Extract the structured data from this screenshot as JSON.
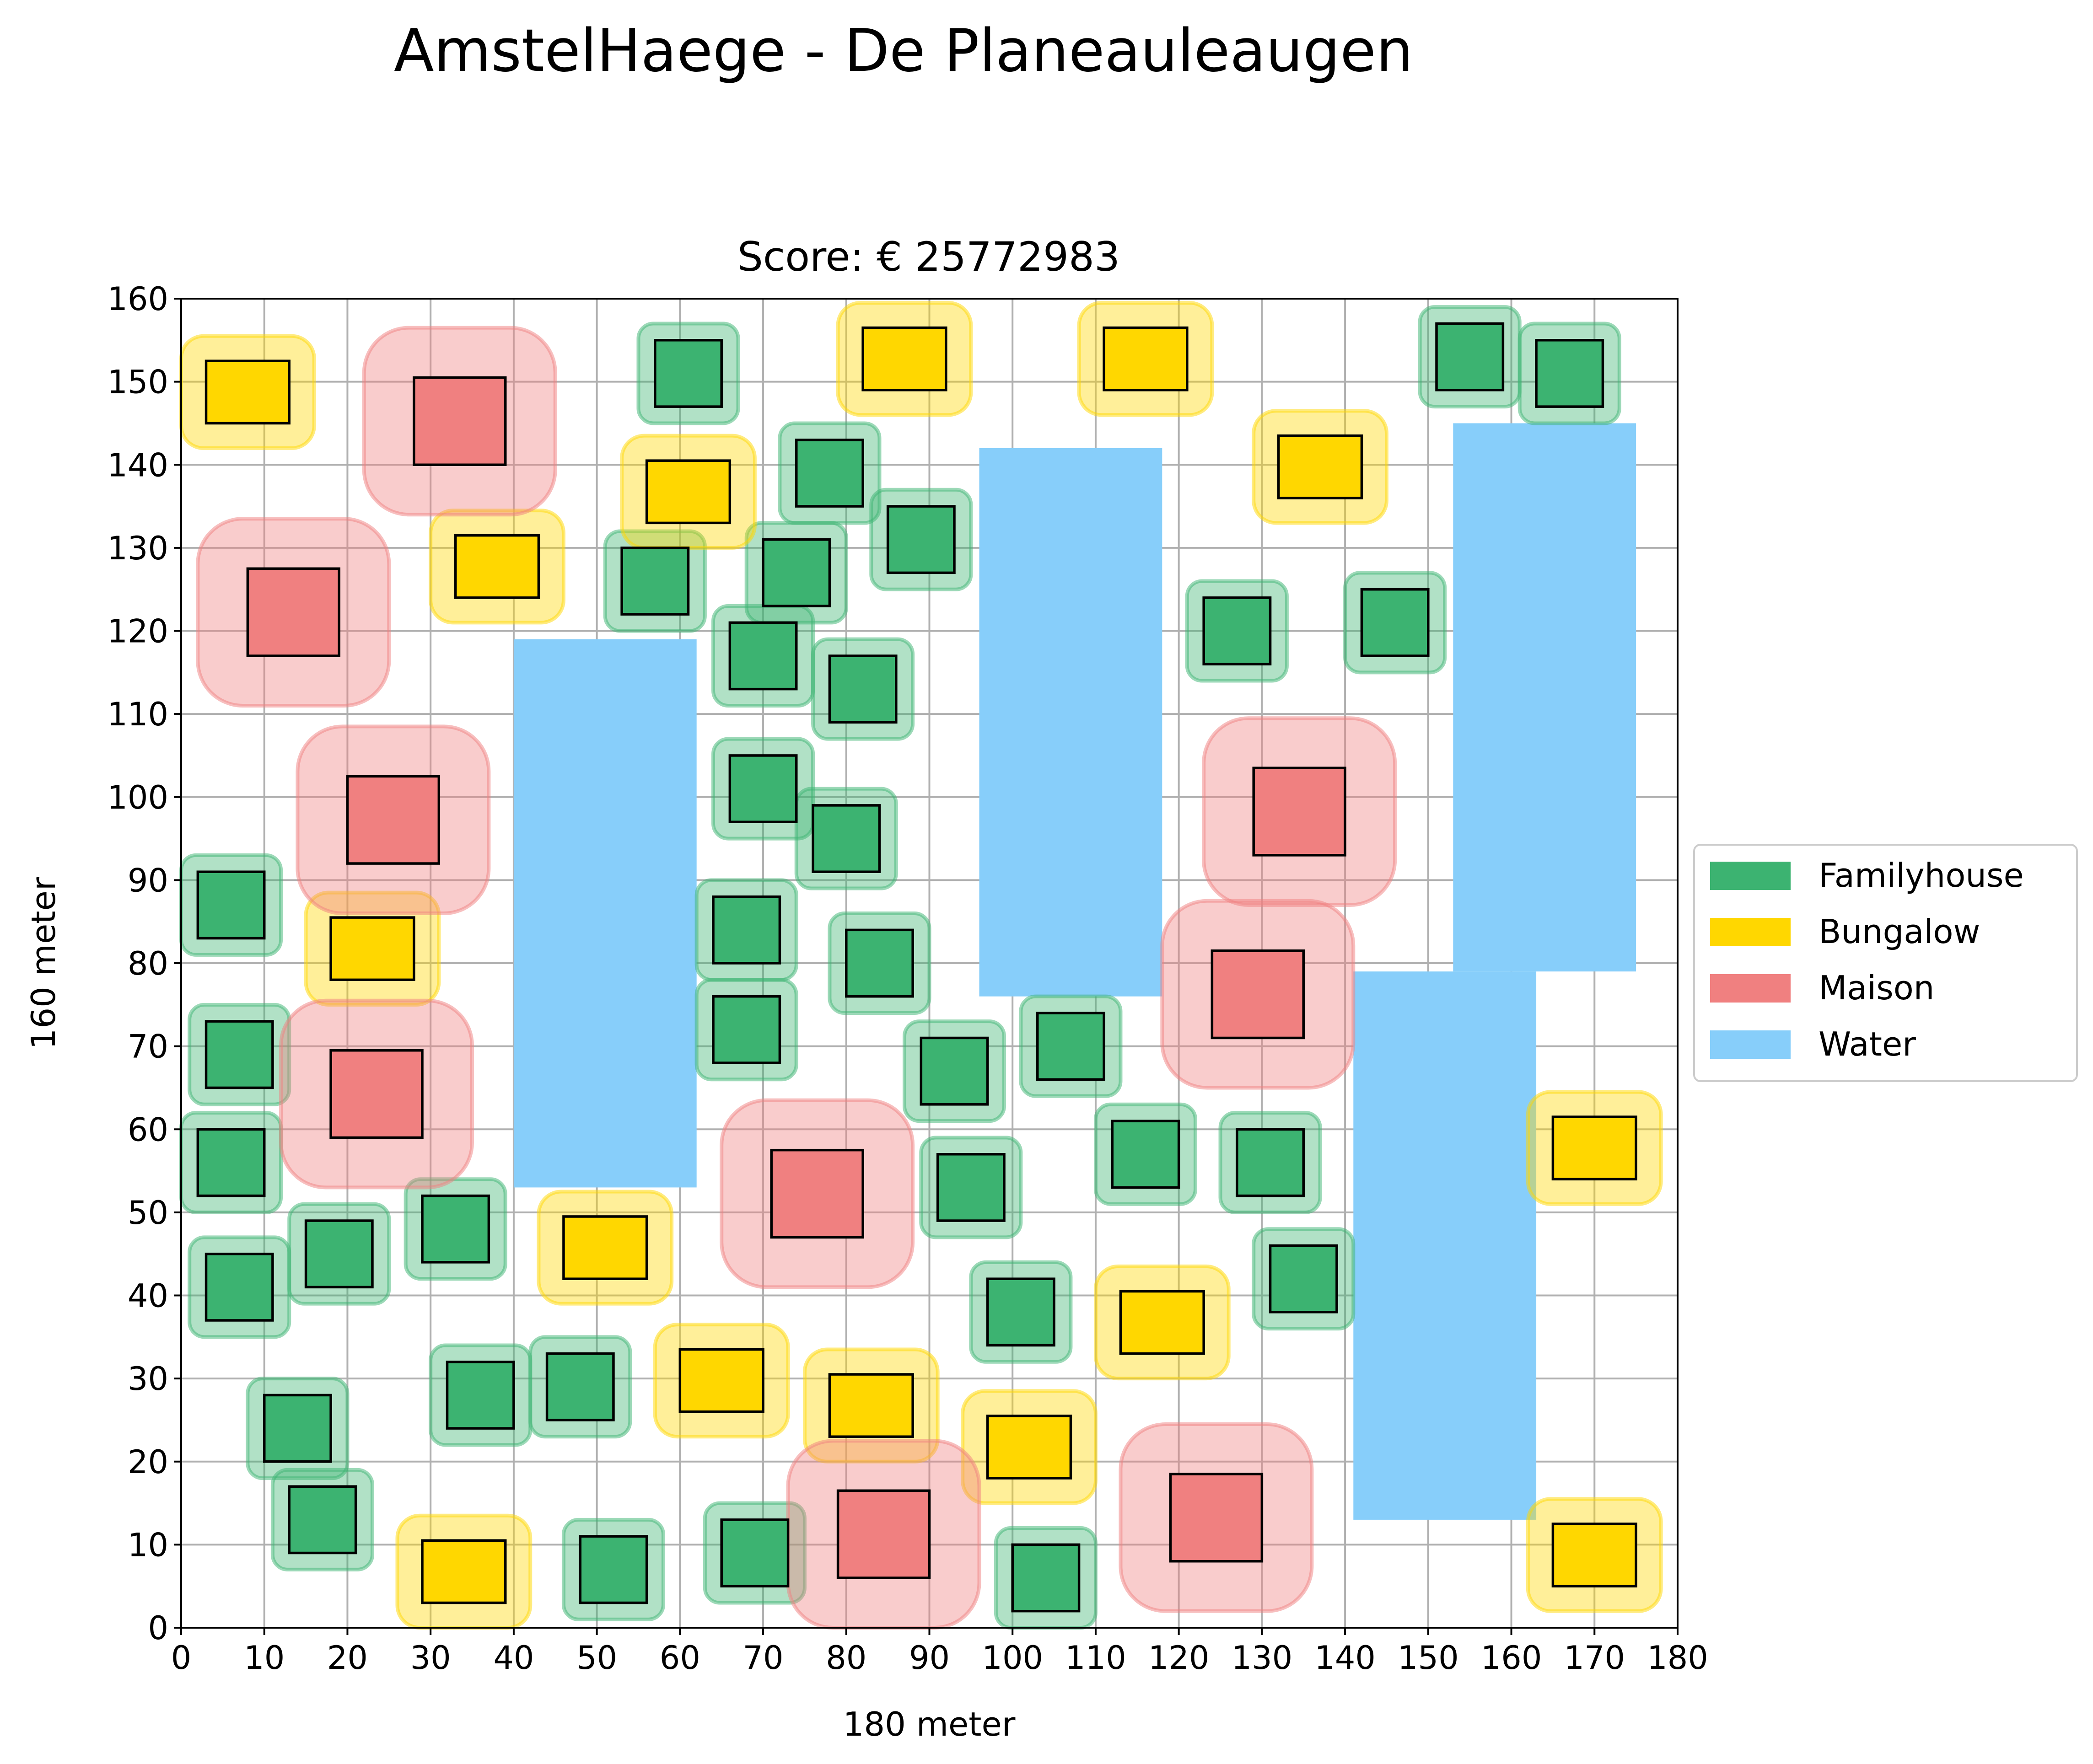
{
  "chart_data": {
    "type": "scatter",
    "title": "AmstelHaege - De Planeauleaugen",
    "subtitle": "Score: € 25772983",
    "xlabel": "180 meter",
    "ylabel": "160 meter",
    "xlim": [
      0,
      180
    ],
    "ylim": [
      0,
      160
    ],
    "xticks": [
      0,
      10,
      20,
      30,
      40,
      50,
      60,
      70,
      80,
      90,
      100,
      110,
      120,
      130,
      140,
      150,
      160,
      170,
      180
    ],
    "yticks": [
      0,
      10,
      20,
      30,
      40,
      50,
      60,
      70,
      80,
      90,
      100,
      110,
      120,
      130,
      140,
      150,
      160
    ],
    "grid": true,
    "legend_position": "right",
    "legend": [
      {
        "name": "Familyhouse",
        "color": "#3cb371"
      },
      {
        "name": "Bungalow",
        "color": "#ffd700"
      },
      {
        "name": "Maison",
        "color": "#f08080"
      },
      {
        "name": "Water",
        "color": "#87cefa"
      }
    ],
    "clearance_zones": {
      "Familyhouse": 2,
      "Bungalow": 3,
      "Maison": 6
    },
    "water": [
      {
        "x0": 40,
        "y0": 53,
        "x1": 62,
        "y1": 119
      },
      {
        "x0": 96,
        "y0": 76,
        "x1": 118,
        "y1": 142
      },
      {
        "x0": 153,
        "y0": 79,
        "x1": 175,
        "y1": 145
      },
      {
        "x0": 141,
        "y0": 13,
        "x1": 163,
        "y1": 79
      }
    ],
    "houses": [
      {
        "type": "Familyhouse",
        "x0": 2,
        "y0": 83,
        "x1": 10,
        "y1": 91
      },
      {
        "type": "Familyhouse",
        "x0": 3,
        "y0": 65,
        "x1": 11,
        "y1": 73
      },
      {
        "type": "Familyhouse",
        "x0": 2,
        "y0": 52,
        "x1": 10,
        "y1": 60
      },
      {
        "type": "Familyhouse",
        "x0": 3,
        "y0": 37,
        "x1": 11,
        "y1": 45
      },
      {
        "type": "Familyhouse",
        "x0": 15,
        "y0": 41,
        "x1": 23,
        "y1": 49
      },
      {
        "type": "Familyhouse",
        "x0": 29,
        "y0": 44,
        "x1": 37,
        "y1": 52
      },
      {
        "type": "Familyhouse",
        "x0": 10,
        "y0": 20,
        "x1": 18,
        "y1": 28
      },
      {
        "type": "Familyhouse",
        "x0": 13,
        "y0": 9,
        "x1": 21,
        "y1": 17
      },
      {
        "type": "Familyhouse",
        "x0": 32,
        "y0": 24,
        "x1": 40,
        "y1": 32
      },
      {
        "type": "Familyhouse",
        "x0": 44,
        "y0": 25,
        "x1": 52,
        "y1": 33
      },
      {
        "type": "Familyhouse",
        "x0": 48,
        "y0": 3,
        "x1": 56,
        "y1": 11
      },
      {
        "type": "Familyhouse",
        "x0": 65,
        "y0": 5,
        "x1": 73,
        "y1": 13
      },
      {
        "type": "Familyhouse",
        "x0": 57,
        "y0": 147,
        "x1": 65,
        "y1": 155
      },
      {
        "type": "Familyhouse",
        "x0": 53,
        "y0": 122,
        "x1": 61,
        "y1": 130
      },
      {
        "type": "Familyhouse",
        "x0": 74,
        "y0": 135,
        "x1": 82,
        "y1": 143
      },
      {
        "type": "Familyhouse",
        "x0": 70,
        "y0": 123,
        "x1": 78,
        "y1": 131
      },
      {
        "type": "Familyhouse",
        "x0": 85,
        "y0": 127,
        "x1": 93,
        "y1": 135
      },
      {
        "type": "Familyhouse",
        "x0": 66,
        "y0": 113,
        "x1": 74,
        "y1": 121
      },
      {
        "type": "Familyhouse",
        "x0": 78,
        "y0": 109,
        "x1": 86,
        "y1": 117
      },
      {
        "type": "Familyhouse",
        "x0": 66,
        "y0": 97,
        "x1": 74,
        "y1": 105
      },
      {
        "type": "Familyhouse",
        "x0": 76,
        "y0": 91,
        "x1": 84,
        "y1": 99
      },
      {
        "type": "Familyhouse",
        "x0": 64,
        "y0": 80,
        "x1": 72,
        "y1": 88
      },
      {
        "type": "Familyhouse",
        "x0": 80,
        "y0": 76,
        "x1": 88,
        "y1": 84
      },
      {
        "type": "Familyhouse",
        "x0": 64,
        "y0": 68,
        "x1": 72,
        "y1": 76
      },
      {
        "type": "Familyhouse",
        "x0": 89,
        "y0": 63,
        "x1": 97,
        "y1": 71
      },
      {
        "type": "Familyhouse",
        "x0": 91,
        "y0": 49,
        "x1": 99,
        "y1": 57
      },
      {
        "type": "Familyhouse",
        "x0": 103,
        "y0": 66,
        "x1": 111,
        "y1": 74
      },
      {
        "type": "Familyhouse",
        "x0": 97,
        "y0": 34,
        "x1": 105,
        "y1": 42
      },
      {
        "type": "Familyhouse",
        "x0": 100,
        "y0": 2,
        "x1": 108,
        "y1": 10
      },
      {
        "type": "Familyhouse",
        "x0": 112,
        "y0": 53,
        "x1": 120,
        "y1": 61
      },
      {
        "type": "Familyhouse",
        "x0": 127,
        "y0": 52,
        "x1": 135,
        "y1": 60
      },
      {
        "type": "Familyhouse",
        "x0": 131,
        "y0": 38,
        "x1": 139,
        "y1": 46
      },
      {
        "type": "Familyhouse",
        "x0": 123,
        "y0": 116,
        "x1": 131,
        "y1": 124
      },
      {
        "type": "Familyhouse",
        "x0": 142,
        "y0": 117,
        "x1": 150,
        "y1": 125
      },
      {
        "type": "Familyhouse",
        "x0": 151,
        "y0": 149,
        "x1": 159,
        "y1": 157
      },
      {
        "type": "Familyhouse",
        "x0": 163,
        "y0": 147,
        "x1": 171,
        "y1": 155
      },
      {
        "type": "Bungalow",
        "x0": 3,
        "y0": 145,
        "x1": 13,
        "y1": 152.5
      },
      {
        "type": "Bungalow",
        "x0": 33,
        "y0": 124,
        "x1": 43,
        "y1": 131.5
      },
      {
        "type": "Bungalow",
        "x0": 56,
        "y0": 133,
        "x1": 66,
        "y1": 140.5
      },
      {
        "type": "Bungalow",
        "x0": 82,
        "y0": 149,
        "x1": 92,
        "y1": 156.5
      },
      {
        "type": "Bungalow",
        "x0": 111,
        "y0": 149,
        "x1": 121,
        "y1": 156.5
      },
      {
        "type": "Bungalow",
        "x0": 132,
        "y0": 136,
        "x1": 142,
        "y1": 143.5
      },
      {
        "type": "Bungalow",
        "x0": 18,
        "y0": 78,
        "x1": 28,
        "y1": 85.5
      },
      {
        "type": "Bungalow",
        "x0": 46,
        "y0": 42,
        "x1": 56,
        "y1": 49.5
      },
      {
        "type": "Bungalow",
        "x0": 60,
        "y0": 26,
        "x1": 70,
        "y1": 33.5
      },
      {
        "type": "Bungalow",
        "x0": 78,
        "y0": 23,
        "x1": 88,
        "y1": 30.5
      },
      {
        "type": "Bungalow",
        "x0": 97,
        "y0": 18,
        "x1": 107,
        "y1": 25.5
      },
      {
        "type": "Bungalow",
        "x0": 113,
        "y0": 33,
        "x1": 123,
        "y1": 40.5
      },
      {
        "type": "Bungalow",
        "x0": 29,
        "y0": 3,
        "x1": 39,
        "y1": 10.5
      },
      {
        "type": "Bungalow",
        "x0": 165,
        "y0": 54,
        "x1": 175,
        "y1": 61.5
      },
      {
        "type": "Bungalow",
        "x0": 165,
        "y0": 5,
        "x1": 175,
        "y1": 12.5
      },
      {
        "type": "Maison",
        "x0": 28,
        "y0": 140,
        "x1": 39,
        "y1": 150.5
      },
      {
        "type": "Maison",
        "x0": 8,
        "y0": 117,
        "x1": 19,
        "y1": 127.5
      },
      {
        "type": "Maison",
        "x0": 20,
        "y0": 92,
        "x1": 31,
        "y1": 102.5
      },
      {
        "type": "Maison",
        "x0": 18,
        "y0": 59,
        "x1": 29,
        "y1": 69.5
      },
      {
        "type": "Maison",
        "x0": 71,
        "y0": 47,
        "x1": 82,
        "y1": 57.5
      },
      {
        "type": "Maison",
        "x0": 79,
        "y0": 6,
        "x1": 90,
        "y1": 16.5
      },
      {
        "type": "Maison",
        "x0": 129,
        "y0": 93,
        "x1": 140,
        "y1": 103.5
      },
      {
        "type": "Maison",
        "x0": 124,
        "y0": 71,
        "x1": 135,
        "y1": 81.5
      },
      {
        "type": "Maison",
        "x0": 119,
        "y0": 8,
        "x1": 130,
        "y1": 18.5
      }
    ]
  }
}
